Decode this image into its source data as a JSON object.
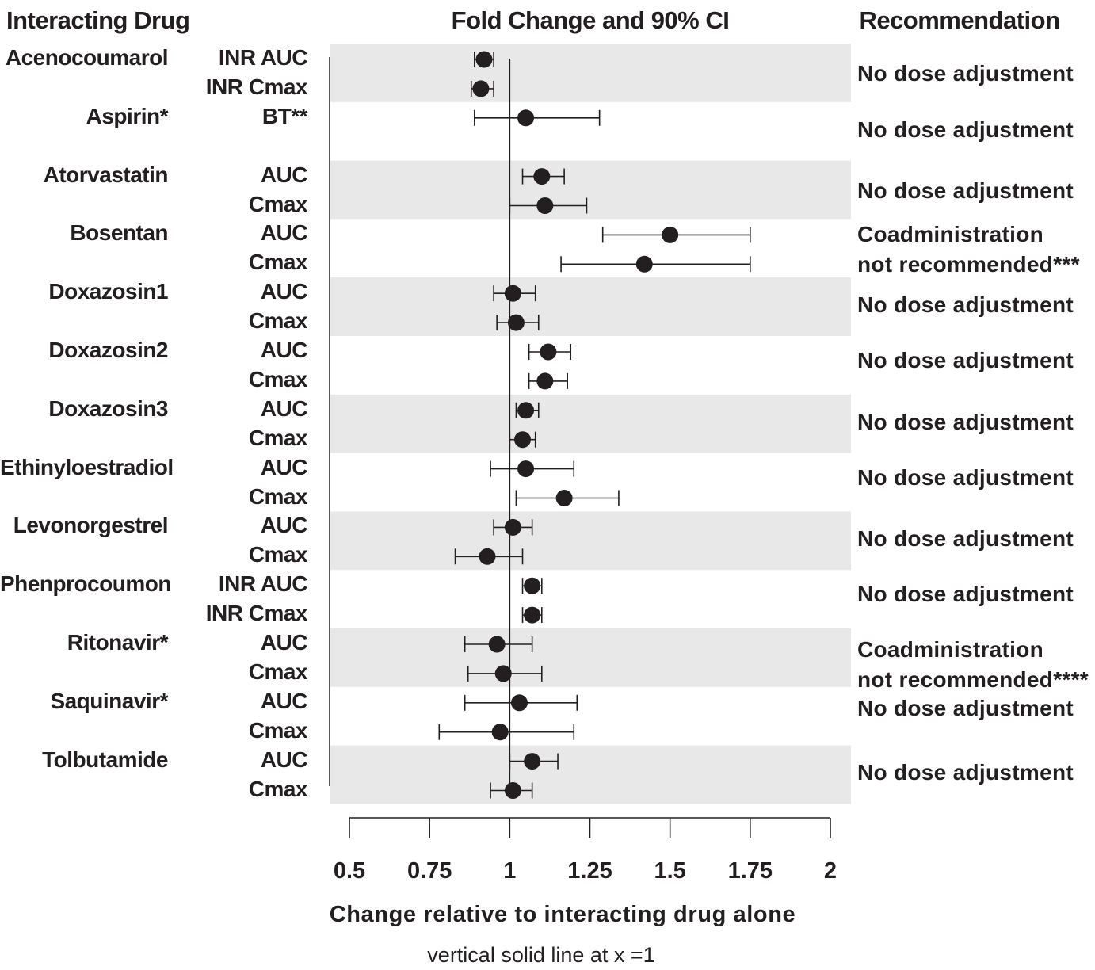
{
  "headers": {
    "drug": "Interacting Drug",
    "fold": "Fold Change and 90% CI",
    "rec": "Recommendation"
  },
  "chart_data": {
    "type": "forest",
    "xlabel": "Change relative to interacting drug alone",
    "note": "vertical solid line at x =1",
    "xlim": [
      0.5,
      2
    ],
    "ticks": [
      0.5,
      0.75,
      1,
      1.25,
      1.5,
      1.75,
      2
    ],
    "tick_labels": [
      "0.5",
      "0.75",
      "1",
      "1.25",
      "1.5",
      "1.75",
      "2"
    ],
    "reference_line": 1,
    "rows": [
      {
        "drug": "Acenocoumarol",
        "metric": "INR AUC",
        "est": 0.92,
        "lo": 0.89,
        "hi": 0.95
      },
      {
        "drug": "",
        "metric": "INR Cmax",
        "est": 0.91,
        "lo": 0.88,
        "hi": 0.95
      },
      {
        "drug": "Aspirin*",
        "metric": "BT**",
        "est": 1.05,
        "lo": 0.89,
        "hi": 1.28
      },
      {
        "drug": "",
        "metric": "",
        "est": null,
        "lo": null,
        "hi": null
      },
      {
        "drug": "Atorvastatin",
        "metric": "AUC",
        "est": 1.1,
        "lo": 1.04,
        "hi": 1.17
      },
      {
        "drug": "",
        "metric": "Cmax",
        "est": 1.11,
        "lo": 1.0,
        "hi": 1.24
      },
      {
        "drug": "Bosentan",
        "metric": "AUC",
        "est": 1.5,
        "lo": 1.29,
        "hi": 1.75
      },
      {
        "drug": "",
        "metric": "Cmax",
        "est": 1.42,
        "lo": 1.16,
        "hi": 1.75
      },
      {
        "drug": "Doxazosin1",
        "metric": "AUC",
        "est": 1.01,
        "lo": 0.95,
        "hi": 1.08
      },
      {
        "drug": "",
        "metric": "Cmax",
        "est": 1.02,
        "lo": 0.96,
        "hi": 1.09
      },
      {
        "drug": "Doxazosin2",
        "metric": "AUC",
        "est": 1.12,
        "lo": 1.06,
        "hi": 1.19
      },
      {
        "drug": "",
        "metric": "Cmax",
        "est": 1.11,
        "lo": 1.06,
        "hi": 1.18
      },
      {
        "drug": "Doxazosin3",
        "metric": "AUC",
        "est": 1.05,
        "lo": 1.02,
        "hi": 1.09
      },
      {
        "drug": "",
        "metric": "Cmax",
        "est": 1.04,
        "lo": 1.0,
        "hi": 1.08
      },
      {
        "drug": "Ethinyloestradiol",
        "metric": "AUC",
        "est": 1.05,
        "lo": 0.94,
        "hi": 1.2
      },
      {
        "drug": "",
        "metric": "Cmax",
        "est": 1.17,
        "lo": 1.02,
        "hi": 1.34
      },
      {
        "drug": "Levonorgestrel",
        "metric": "AUC",
        "est": 1.01,
        "lo": 0.95,
        "hi": 1.07
      },
      {
        "drug": "",
        "metric": "Cmax",
        "est": 0.93,
        "lo": 0.83,
        "hi": 1.04
      },
      {
        "drug": "Phenprocoumon",
        "metric": "INR AUC",
        "est": 1.07,
        "lo": 1.04,
        "hi": 1.1
      },
      {
        "drug": "",
        "metric": "INR Cmax",
        "est": 1.07,
        "lo": 1.04,
        "hi": 1.1
      },
      {
        "drug": "Ritonavir*",
        "metric": "AUC",
        "est": 0.96,
        "lo": 0.86,
        "hi": 1.07
      },
      {
        "drug": "",
        "metric": "Cmax",
        "est": 0.98,
        "lo": 0.87,
        "hi": 1.1
      },
      {
        "drug": "Saquinavir*",
        "metric": "AUC",
        "est": 1.03,
        "lo": 0.86,
        "hi": 1.21
      },
      {
        "drug": "",
        "metric": "Cmax",
        "est": 0.97,
        "lo": 0.78,
        "hi": 1.2
      },
      {
        "drug": "Tolbutamide",
        "metric": "AUC",
        "est": 1.07,
        "lo": 1.0,
        "hi": 1.15
      },
      {
        "drug": "",
        "metric": "Cmax",
        "est": 1.01,
        "lo": 0.94,
        "hi": 1.07
      }
    ],
    "shaded_row_groups": [
      [
        0,
        1
      ],
      [
        4,
        5
      ],
      [
        8,
        9
      ],
      [
        12,
        13
      ],
      [
        16,
        17
      ],
      [
        20,
        21
      ],
      [
        24,
        25
      ]
    ],
    "recommendations": [
      {
        "text": [
          "No dose adjustment"
        ],
        "row": 0.5
      },
      {
        "text": [
          "No dose adjustment"
        ],
        "row": 2.4
      },
      {
        "text": [
          "No dose adjustment"
        ],
        "row": 4.5
      },
      {
        "text": [
          "Coadministration",
          "not recommended***"
        ],
        "row": 6.5
      },
      {
        "text": [
          "No dose adjustment"
        ],
        "row": 8.4
      },
      {
        "text": [
          "No dose adjustment"
        ],
        "row": 10.3
      },
      {
        "text": [
          "No dose adjustment"
        ],
        "row": 12.4
      },
      {
        "text": [
          "No dose adjustment"
        ],
        "row": 14.3
      },
      {
        "text": [
          "No dose adjustment"
        ],
        "row": 16.4
      },
      {
        "text": [
          "No dose adjustment"
        ],
        "row": 18.3
      },
      {
        "text": [
          "Coadministration",
          "not recommended****"
        ],
        "row": 20.7
      },
      {
        "text": [
          "No dose adjustment"
        ],
        "row": 22.2
      },
      {
        "text": [
          "No dose adjustment"
        ],
        "row": 24.4
      }
    ]
  }
}
